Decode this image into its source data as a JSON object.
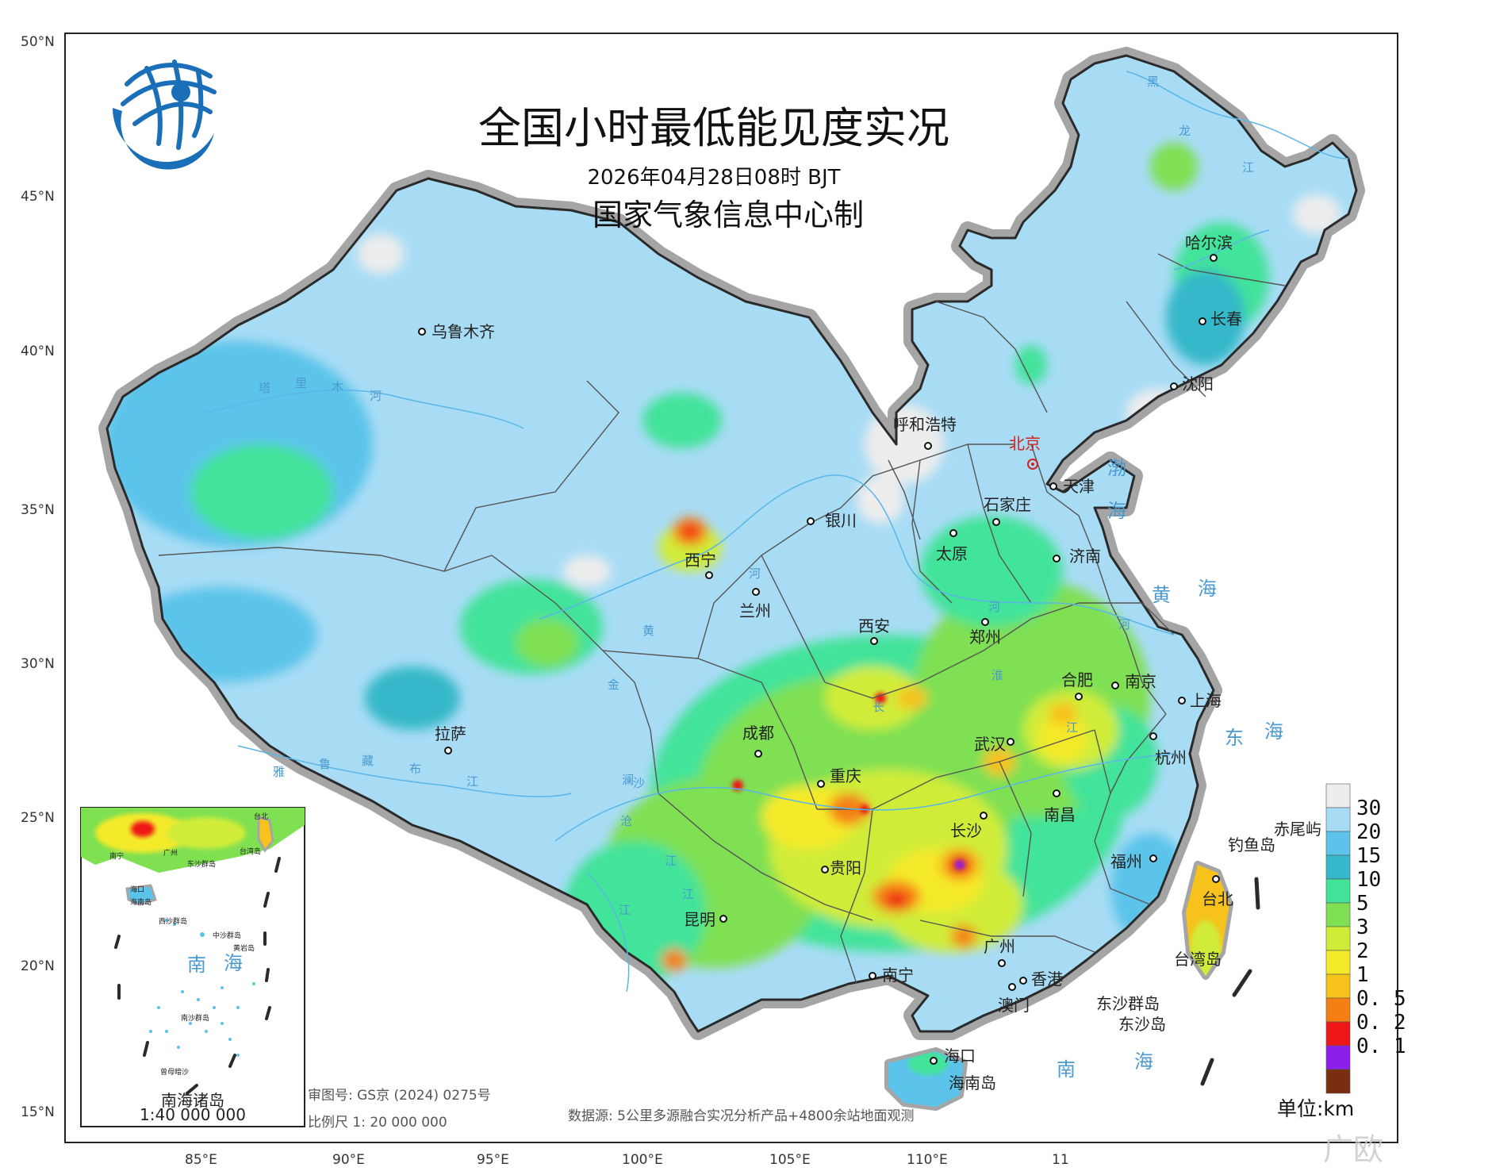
{
  "title": "全国小时最低能见度实况",
  "subtitle_time": "2026年04月28日08时 BJT",
  "producer": "国家气象信息中心制",
  "lat_labels": [
    "50°N",
    "45°N",
    "40°N",
    "35°N",
    "30°N",
    "25°N",
    "20°N",
    "15°N"
  ],
  "lon_labels": [
    "85°E",
    "90°E",
    "95°E",
    "100°E",
    "105°E",
    "110°E",
    "11"
  ],
  "cities": [
    {
      "name": "乌鲁木齐"
    },
    {
      "name": "哈尔滨"
    },
    {
      "name": "长春"
    },
    {
      "name": "沈阳"
    },
    {
      "name": "呼和浩特"
    },
    {
      "name": "北京"
    },
    {
      "name": "天津"
    },
    {
      "name": "石家庄"
    },
    {
      "name": "银川"
    },
    {
      "name": "太原"
    },
    {
      "name": "济南"
    },
    {
      "name": "西宁"
    },
    {
      "name": "兰州"
    },
    {
      "name": "西安"
    },
    {
      "name": "郑州"
    },
    {
      "name": "合肥"
    },
    {
      "name": "南京"
    },
    {
      "name": "上海"
    },
    {
      "name": "拉萨"
    },
    {
      "name": "成都"
    },
    {
      "name": "武汉"
    },
    {
      "name": "杭州"
    },
    {
      "name": "重庆"
    },
    {
      "name": "南昌"
    },
    {
      "name": "长沙"
    },
    {
      "name": "贵阳"
    },
    {
      "name": "福州"
    },
    {
      "name": "台北"
    },
    {
      "name": "昆明"
    },
    {
      "name": "广州"
    },
    {
      "name": "南宁"
    },
    {
      "name": "香港"
    },
    {
      "name": "澳门"
    },
    {
      "name": "海口"
    }
  ],
  "islands": {
    "diaoyu": "钓鱼岛",
    "chiwei": "赤尾屿",
    "taiwan": "台湾岛",
    "dongsha": "东沙群岛",
    "dongsha_small": "东沙岛",
    "hainan": "海南岛"
  },
  "seas": {
    "bohai_1": "渤",
    "bohai_2": "海",
    "huanghai_1": "黄",
    "huanghai_2": "海",
    "donghai_1": "东",
    "donghai_2": "海",
    "nanhai_1": "南",
    "nanhai_2": "海"
  },
  "rivers": {
    "tarim": [
      "塔",
      "里",
      "木",
      "河"
    ],
    "huanghe": [
      "黄",
      "河",
      "河"
    ],
    "changjiang": [
      "长",
      "江",
      "江"
    ],
    "yarlung": [
      "雅",
      "鲁",
      "藏",
      "布",
      "江"
    ],
    "jinsha": [
      "金",
      "沙",
      "江"
    ],
    "lancang": [
      "澜",
      "沧",
      "江"
    ],
    "heilong": [
      "黑",
      "龙",
      "江"
    ],
    "huai": "淮",
    "yun": "河"
  },
  "inset": {
    "title": "南海诸岛",
    "scale": "1:40 000 000",
    "labels": [
      "南宁",
      "广州",
      "台北",
      "台湾岛",
      "海口",
      "海南岛",
      "东沙群岛",
      "西沙群岛",
      "中沙群岛",
      "黄岩岛",
      "南沙群岛",
      "曾母暗沙",
      "南",
      "海"
    ]
  },
  "notes": {
    "approval": "审图号: GS京 (2024) 0275号",
    "scale": "比例尺 1: 20 000 000",
    "source": "数据源: 5公里多源融合实况分析产品+4800余站地面观测",
    "unit": "单位:km"
  },
  "legend": {
    "colors": [
      "#ededed",
      "#a8dcf5",
      "#5cc4ea",
      "#35b8c9",
      "#42e39a",
      "#7fe052",
      "#d0ec38",
      "#f5ea2a",
      "#f7c21c",
      "#f57f13",
      "#ee1717",
      "#8b1ee8",
      "#7a2d0f"
    ],
    "labels": [
      "30",
      "20",
      "15",
      "10",
      "5",
      "3",
      "2",
      "1",
      "0. 5",
      "0. 2",
      "0. 1"
    ]
  },
  "watermark": "广欧"
}
